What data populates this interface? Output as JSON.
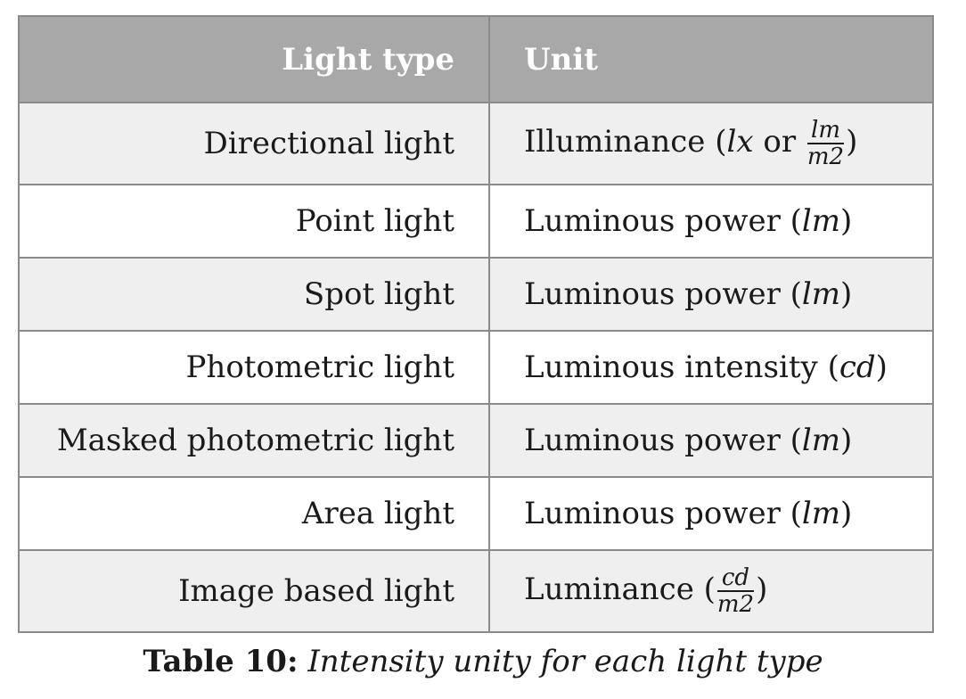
{
  "table": {
    "headers": [
      "Light type",
      "Unit"
    ],
    "rows": [
      {
        "type": "Directional light",
        "unit_prefix": "Illuminance (",
        "unit_sym": "lx",
        "unit_mid": " or ",
        "frac_num": "lm",
        "frac_den": "m2",
        "unit_suffix": ")"
      },
      {
        "type": "Point light",
        "unit_prefix": "Luminous power (",
        "unit_sym": "lm",
        "unit_suffix": ")"
      },
      {
        "type": "Spot light",
        "unit_prefix": "Luminous power (",
        "unit_sym": "lm",
        "unit_suffix": ")"
      },
      {
        "type": "Photometric light",
        "unit_prefix": "Luminous intensity (",
        "unit_sym": "cd",
        "unit_suffix": ")"
      },
      {
        "type": "Masked photometric light",
        "unit_prefix": "Luminous power (",
        "unit_sym": "lm",
        "unit_suffix": ")"
      },
      {
        "type": "Area light",
        "unit_prefix": "Luminous power (",
        "unit_sym": "lm",
        "unit_suffix": ")"
      },
      {
        "type": "Image based light",
        "unit_prefix": "Luminance (",
        "frac_num": "cd",
        "frac_den": "m2",
        "unit_suffix": ")"
      }
    ]
  },
  "caption": {
    "label": "Table 10:",
    "text": "Intensity unity for each light type"
  },
  "colors": {
    "header_bg": "#a8a8a8",
    "header_text": "#ffffff",
    "row_shaded": "#efefef",
    "row_plain": "#ffffff",
    "border": "#8a8a8a"
  }
}
